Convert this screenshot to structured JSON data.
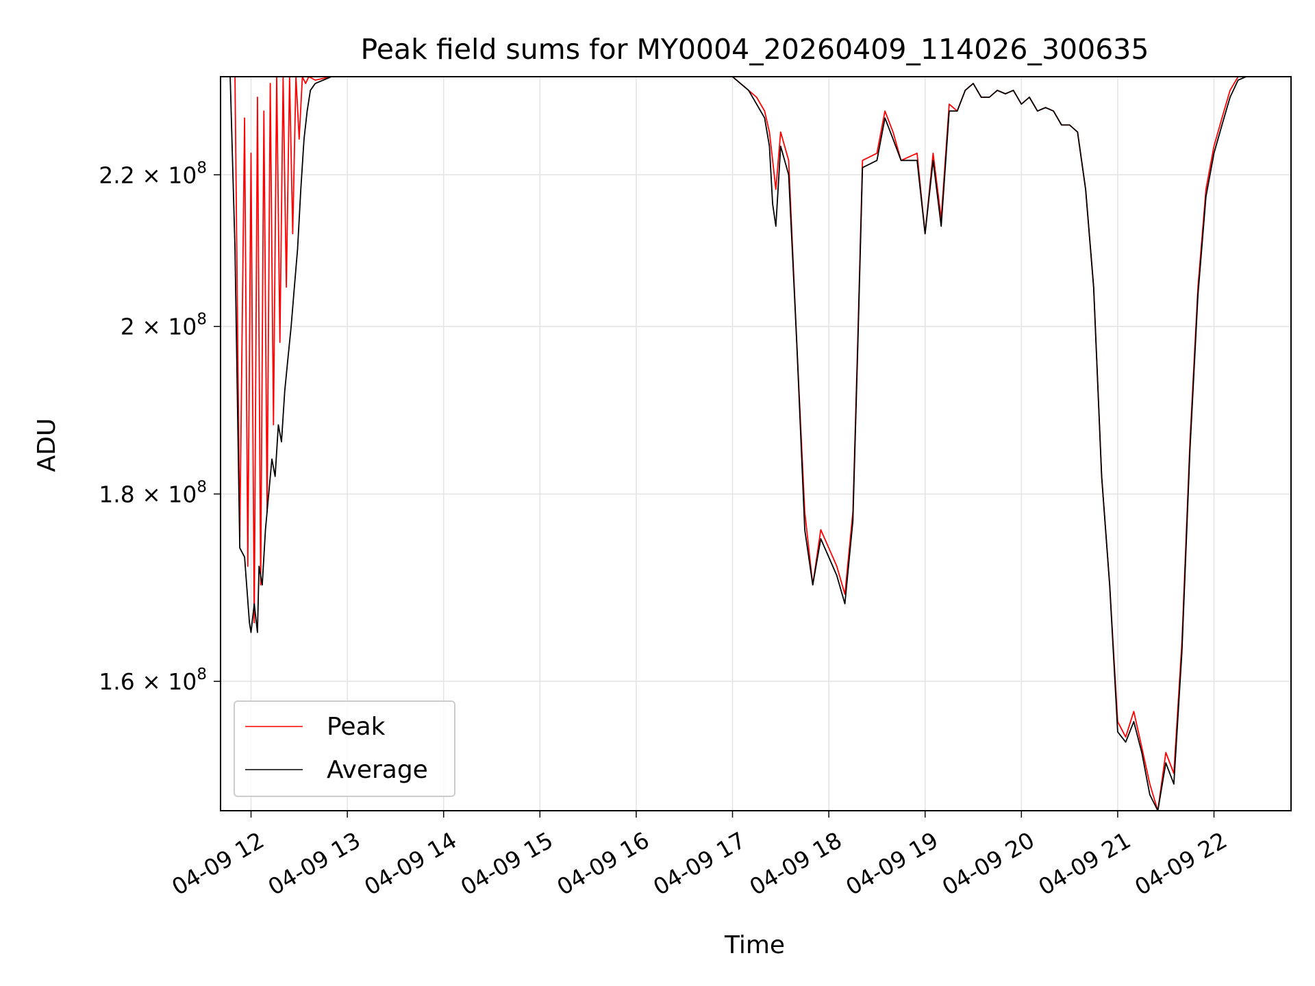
{
  "chart_data": {
    "type": "line",
    "title": "Peak field sums for MY0004_20260409_114026_300635",
    "xlabel": "Time",
    "ylabel": "ADU",
    "x_tick_labels": [
      "04-09 12",
      "04-09 13",
      "04-09 14",
      "04-09 15",
      "04-09 16",
      "04-09 17",
      "04-09 18",
      "04-09 19",
      "04-09 20",
      "04-09 21",
      "04-09 22"
    ],
    "y_tick_labels": [
      {
        "value": 160000000,
        "mantissa": "1.6",
        "times": "×",
        "base": "10",
        "exp": "8"
      },
      {
        "value": 180000000,
        "mantissa": "1.8",
        "times": "×",
        "base": "10",
        "exp": "8"
      },
      {
        "value": 200000000,
        "mantissa": "2",
        "times": "×",
        "base": "10",
        "exp": "8"
      },
      {
        "value": 220000000,
        "mantissa": "2.2",
        "times": "×",
        "base": "10",
        "exp": "8"
      }
    ],
    "xlim": [
      "2026-04-09 11:41",
      "2026-04-09 22:48"
    ],
    "ylim": [
      147500000,
      234000000
    ],
    "y_scale": "log",
    "grid": true,
    "legend_position": "lower-left",
    "series": [
      {
        "name": "Peak",
        "color": "#ff0000",
        "time": [
          "11:40",
          "11:50",
          "11:53",
          "11:56",
          "11:58",
          "12:00",
          "12:02",
          "12:04",
          "12:06",
          "12:08",
          "12:10",
          "12:12",
          "12:14",
          "12:16",
          "12:18",
          "12:20",
          "12:22",
          "12:24",
          "12:26",
          "12:28",
          "12:30",
          "12:32",
          "12:34",
          "12:36",
          "12:40",
          "12:50",
          "16:50",
          "17:00",
          "17:05",
          "17:10",
          "17:15",
          "17:20",
          "17:23",
          "17:25",
          "17:27",
          "17:30",
          "17:35",
          "17:40",
          "17:45",
          "17:50",
          "17:55",
          "18:00",
          "18:05",
          "18:10",
          "18:15",
          "18:18",
          "18:21",
          "18:30",
          "18:35",
          "18:40",
          "18:45",
          "18:55",
          "19:00",
          "19:05",
          "19:10",
          "19:15",
          "19:20",
          "19:25",
          "19:30",
          "19:35",
          "19:40",
          "19:45",
          "19:50",
          "19:55",
          "20:00",
          "20:05",
          "20:10",
          "20:15",
          "20:20",
          "20:25",
          "20:30",
          "20:35",
          "20:40",
          "20:45",
          "20:50",
          "20:55",
          "21:00",
          "21:05",
          "21:10",
          "21:15",
          "21:20",
          "21:25",
          "21:30",
          "21:35",
          "21:40",
          "21:45",
          "21:50",
          "21:55",
          "22:00",
          "22:05",
          "22:10",
          "22:15",
          "22:20",
          "22:25",
          "22:30",
          "22:35",
          "22:40",
          "22:45",
          "22:48"
        ],
        "values": [
          234000000,
          234000000,
          175000000,
          228000000,
          172000000,
          223000000,
          166000000,
          231000000,
          170000000,
          229000000,
          178000000,
          233000000,
          188000000,
          234000000,
          198000000,
          234000000,
          205000000,
          234000000,
          212000000,
          234000000,
          225000000,
          234000000,
          233000000,
          234000000,
          233500000,
          234000000,
          234000000,
          234000000,
          233000000,
          232000000,
          231000000,
          229000000,
          226000000,
          222000000,
          218000000,
          226000000,
          222000000,
          198000000,
          178000000,
          170000000,
          176000000,
          174000000,
          172000000,
          169000000,
          178000000,
          198000000,
          222000000,
          223000000,
          229000000,
          226000000,
          222000000,
          223000000,
          212000000,
          223000000,
          214000000,
          230000000,
          229000000,
          232000000,
          233000000,
          231000000,
          231000000,
          232000000,
          231500000,
          232000000,
          230000000,
          231000000,
          229000000,
          229500000,
          229000000,
          227000000,
          227000000,
          226000000,
          218000000,
          205000000,
          182000000,
          170000000,
          156000000,
          154500000,
          157000000,
          153500000,
          150000000,
          147500000,
          153000000,
          151000000,
          164000000,
          186000000,
          205000000,
          218000000,
          224000000,
          228000000,
          232000000,
          234000000,
          234000000,
          234000000,
          234000000,
          234000000,
          234000000,
          234000000,
          234000000
        ]
      },
      {
        "name": "Average",
        "color": "#000000",
        "time": [
          "11:40",
          "11:47",
          "11:50",
          "11:53",
          "11:56",
          "11:59",
          "12:00",
          "12:02",
          "12:04",
          "12:05",
          "12:07",
          "12:09",
          "12:11",
          "12:13",
          "12:15",
          "12:17",
          "12:19",
          "12:21",
          "12:23",
          "12:25",
          "12:27",
          "12:29",
          "12:31",
          "12:33",
          "12:35",
          "12:37",
          "12:40",
          "12:45",
          "12:50",
          "16:50",
          "17:00",
          "17:05",
          "17:10",
          "17:15",
          "17:20",
          "17:23",
          "17:25",
          "17:27",
          "17:30",
          "17:35",
          "17:40",
          "17:45",
          "17:50",
          "17:55",
          "18:00",
          "18:05",
          "18:10",
          "18:15",
          "18:18",
          "18:21",
          "18:30",
          "18:35",
          "18:40",
          "18:45",
          "18:55",
          "19:00",
          "19:05",
          "19:10",
          "19:15",
          "19:20",
          "19:25",
          "19:30",
          "19:35",
          "19:40",
          "19:45",
          "19:50",
          "19:55",
          "20:00",
          "20:05",
          "20:10",
          "20:15",
          "20:20",
          "20:25",
          "20:30",
          "20:35",
          "20:40",
          "20:45",
          "20:50",
          "20:55",
          "21:00",
          "21:05",
          "21:10",
          "21:15",
          "21:20",
          "21:25",
          "21:30",
          "21:35",
          "21:40",
          "21:45",
          "21:50",
          "21:55",
          "22:00",
          "22:05",
          "22:10",
          "22:15",
          "22:20",
          "22:25",
          "22:30",
          "22:35",
          "22:40",
          "22:45",
          "22:48"
        ],
        "values": [
          234000000,
          234000000,
          210000000,
          174000000,
          173000000,
          166000000,
          165000000,
          168000000,
          165000000,
          172000000,
          170000000,
          176000000,
          180000000,
          184000000,
          182000000,
          188000000,
          186000000,
          192000000,
          196000000,
          200000000,
          205000000,
          210000000,
          218000000,
          225000000,
          229000000,
          232000000,
          233000000,
          233500000,
          234000000,
          234000000,
          234000000,
          233000000,
          232000000,
          230000000,
          228000000,
          224000000,
          216000000,
          213000000,
          224000000,
          220000000,
          198000000,
          176000000,
          170000000,
          175000000,
          173000000,
          171000000,
          168000000,
          177000000,
          197000000,
          221000000,
          222000000,
          228000000,
          225000000,
          222000000,
          222000000,
          212000000,
          222000000,
          213000000,
          229000000,
          229000000,
          232000000,
          233000000,
          231000000,
          231000000,
          232000000,
          231500000,
          232000000,
          230000000,
          231000000,
          229000000,
          229500000,
          229000000,
          227000000,
          227000000,
          226000000,
          218000000,
          205000000,
          182000000,
          170000000,
          155000000,
          154000000,
          156000000,
          153000000,
          149000000,
          147500000,
          152000000,
          150000000,
          163000000,
          185000000,
          204000000,
          217000000,
          223000000,
          227000000,
          231000000,
          233500000,
          234000000,
          234000000,
          234000000,
          234000000,
          234000000,
          234000000,
          234000000
        ]
      }
    ]
  }
}
